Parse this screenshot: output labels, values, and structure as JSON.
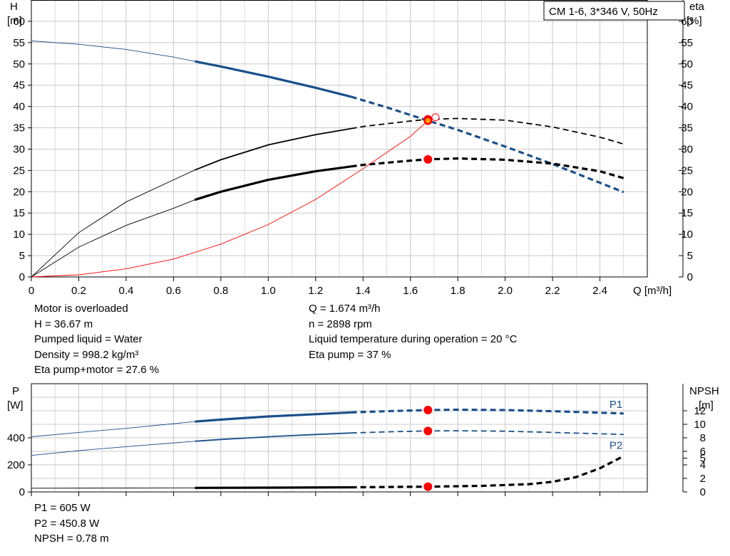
{
  "colors": {
    "head": "#1a4f8a",
    "black": "#000000",
    "red": "#ff0000",
    "grid": "#c8c8c8",
    "text": "#000000"
  },
  "chart_data": [
    {
      "type": "line",
      "legend_box": "CM 1-6, 3*346 V, 50Hz",
      "xlabel": "Q [m³/h]",
      "xlim": [
        0,
        2.6
      ],
      "x_ticks": [
        "0",
        "0.2",
        "0.4",
        "0.6",
        "0.8",
        "1.0",
        "1.2",
        "1.4",
        "1.6",
        "1.8",
        "2.0",
        "2.2",
        "2.4"
      ],
      "y_left_label_1": "H",
      "y_left_label_2": "[m]",
      "y_right_label_1": "eta",
      "y_right_label_2": "[%]",
      "ylim_left": [
        0,
        65
      ],
      "ylim_right": [
        0,
        65
      ],
      "y_ticks": [
        "0",
        "5",
        "10",
        "15",
        "20",
        "25",
        "30",
        "35",
        "40",
        "45",
        "50",
        "55",
        "60"
      ],
      "grid": true,
      "series": [
        {
          "axis": "left",
          "color": "head",
          "style": "thin-bold-dashed",
          "bold_from": 0.69,
          "dash_from": 1.35,
          "x": [
            0,
            0.2,
            0.4,
            0.6,
            0.69,
            0.8,
            1.0,
            1.2,
            1.35,
            1.5,
            1.674,
            1.8,
            2.0,
            2.2,
            2.5
          ],
          "y": [
            55.4,
            54.6,
            53.4,
            51.6,
            50.6,
            49.4,
            47.0,
            44.4,
            42.3,
            39.8,
            36.67,
            34.5,
            30.6,
            26.5,
            19.9
          ]
        },
        {
          "axis": "right",
          "color": "black",
          "style": "thin-bold-dashed",
          "width": 1.8,
          "bold_from": 0.69,
          "dash_from": 1.35,
          "x": [
            0,
            0.2,
            0.4,
            0.6,
            0.69,
            0.8,
            1.0,
            1.2,
            1.4,
            1.6,
            1.674,
            1.8,
            2.0,
            2.2,
            2.4,
            2.5
          ],
          "y": [
            0,
            10.4,
            17.6,
            22.8,
            25.1,
            27.5,
            31.0,
            33.4,
            35.3,
            36.6,
            37.0,
            37.2,
            36.8,
            35.2,
            32.8,
            31.2
          ]
        },
        {
          "axis": "right",
          "color": "black",
          "style": "thin-bold-dashed",
          "width": 3.2,
          "bold_from": 0.69,
          "dash_from": 1.35,
          "x": [
            0,
            0.2,
            0.4,
            0.6,
            0.69,
            0.8,
            1.0,
            1.2,
            1.4,
            1.6,
            1.674,
            1.8,
            2.0,
            2.2,
            2.4,
            2.5
          ],
          "y": [
            0,
            7.0,
            12.1,
            16.1,
            18.1,
            20.0,
            22.8,
            24.8,
            26.3,
            27.3,
            27.6,
            27.8,
            27.5,
            26.6,
            24.8,
            23.2
          ]
        },
        {
          "axis": "left",
          "color": "red",
          "style": "thin",
          "x": [
            0,
            0.2,
            0.4,
            0.6,
            0.8,
            1.0,
            1.2,
            1.4,
            1.6,
            1.674
          ],
          "y": [
            0,
            0.5,
            1.9,
            4.2,
            7.7,
            12.3,
            18.2,
            25.4,
            33.0,
            36.67
          ]
        }
      ],
      "markers": [
        {
          "x": 1.674,
          "y": 36.67,
          "color": "red",
          "r": 6
        },
        {
          "x": 1.674,
          "y": 37.0,
          "color": "red",
          "r": 6
        },
        {
          "x": 1.674,
          "y": 27.6,
          "color": "red",
          "r": 6
        }
      ],
      "hollow_marker": {
        "x": 1.7,
        "y": 37.5
      }
    },
    {
      "type": "line",
      "xlim": [
        0,
        2.6
      ],
      "y_left_label_1": "P",
      "y_left_label_2": "[W]",
      "y_right_label_1": "NPSH",
      "y_right_label_2": "[m]",
      "ylim_left": [
        0,
        800
      ],
      "ylim_right": [
        0,
        16
      ],
      "y_left_ticks": [
        "0",
        "200",
        "400"
      ],
      "y_right_ticks": [
        "0",
        "2",
        "4",
        "5",
        "6",
        "8",
        "10",
        "12"
      ],
      "grid": true,
      "series": [
        {
          "name": "P1",
          "axis": "left",
          "color": "head",
          "style": "thin-bold-dashed",
          "width": 3.2,
          "bold_from": 0.69,
          "dash_from": 1.35,
          "x": [
            0,
            0.2,
            0.4,
            0.69,
            0.8,
            1.0,
            1.2,
            1.35,
            1.5,
            1.674,
            1.8,
            2.0,
            2.2,
            2.5
          ],
          "y": [
            408,
            440,
            470,
            520,
            535,
            558,
            575,
            588,
            597,
            605,
            608,
            605,
            597,
            580
          ]
        },
        {
          "name": "P2",
          "axis": "left",
          "color": "head",
          "style": "thin-bold-dashed",
          "width": 1.8,
          "bold_from": 0.69,
          "dash_from": 1.35,
          "x": [
            0,
            0.2,
            0.4,
            0.69,
            0.8,
            1.0,
            1.2,
            1.35,
            1.5,
            1.674,
            1.8,
            2.0,
            2.2,
            2.5
          ],
          "y": [
            270,
            305,
            335,
            375,
            388,
            408,
            425,
            436,
            444,
            450.8,
            452,
            449,
            440,
            425
          ]
        },
        {
          "axis": "right",
          "color": "black",
          "style": "thin-bold-dashed",
          "width": 3.2,
          "bold_from": 0.69,
          "dash_from": 1.35,
          "x": [
            0,
            0.69,
            1.0,
            1.35,
            1.674,
            1.9,
            2.1,
            2.2,
            2.3,
            2.4,
            2.5
          ],
          "y": [
            0.55,
            0.6,
            0.63,
            0.68,
            0.78,
            0.9,
            1.15,
            1.5,
            2.2,
            3.5,
            5.3
          ]
        }
      ],
      "markers": [
        {
          "x": 1.674,
          "y": 605,
          "axis": "left",
          "color": "red",
          "r": 6
        },
        {
          "x": 1.674,
          "y": 450.8,
          "axis": "left",
          "color": "red",
          "r": 6
        },
        {
          "x": 1.674,
          "y": 0.78,
          "axis": "right",
          "color": "red",
          "r": 6
        }
      ]
    }
  ],
  "info_left": [
    "Motor is overloaded",
    "H = 36.67 m",
    "Pumped liquid = Water",
    "Density = 998.2 kg/m³",
    "Eta pump+motor = 27.6 %"
  ],
  "info_right": [
    "Q = 1.674 m³/h",
    "n = 2898 rpm",
    "Liquid temperature during operation = 20 °C",
    "Eta pump = 37 %"
  ],
  "info_bottom": [
    "P1 = 605 W",
    "P2 = 450.8 W",
    "NPSH = 0.78 m"
  ]
}
